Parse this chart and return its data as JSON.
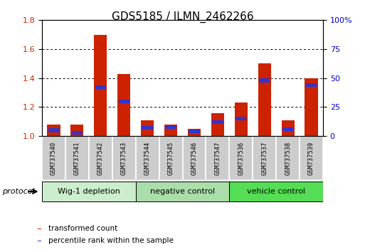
{
  "title": "GDS5185 / ILMN_2462266",
  "samples": [
    "GSM737540",
    "GSM737541",
    "GSM737542",
    "GSM737543",
    "GSM737544",
    "GSM737545",
    "GSM737546",
    "GSM737547",
    "GSM737536",
    "GSM737537",
    "GSM737538",
    "GSM737539"
  ],
  "transformed_count": [
    1.08,
    1.08,
    1.7,
    1.43,
    1.11,
    1.08,
    1.05,
    1.16,
    1.23,
    1.5,
    1.11,
    1.4
  ],
  "percentile_rank": [
    5,
    3,
    42,
    30,
    7,
    8,
    4,
    12,
    15,
    48,
    6,
    44
  ],
  "groups": [
    {
      "label": "Wig-1 depletion",
      "start": 0,
      "end": 4,
      "color": "#cceecc"
    },
    {
      "label": "negative control",
      "start": 4,
      "end": 8,
      "color": "#aaddaa"
    },
    {
      "label": "vehicle control",
      "start": 8,
      "end": 12,
      "color": "#55dd55"
    }
  ],
  "bar_color_red": "#cc2200",
  "bar_color_blue": "#3333cc",
  "ylim_left": [
    1.0,
    1.8
  ],
  "ylim_right": [
    0,
    100
  ],
  "yticks_left": [
    1.0,
    1.2,
    1.4,
    1.6,
    1.8
  ],
  "yticks_right": [
    0,
    25,
    50,
    75,
    100
  ],
  "yticklabels_right": [
    "0",
    "25",
    "50",
    "75",
    "100%"
  ],
  "left_tick_color": "#cc2200",
  "right_tick_color": "#0000cc",
  "grid_yticks": [
    1.2,
    1.4,
    1.6
  ],
  "bar_width": 0.55,
  "blue_bar_height": 0.025,
  "protocol_label": "protocol",
  "legend_items": [
    {
      "label": "transformed count",
      "color": "#cc2200"
    },
    {
      "label": "percentile rank within the sample",
      "color": "#3333cc"
    }
  ],
  "sample_box_color": "#cccccc",
  "fig_width": 5.13,
  "fig_height": 3.54,
  "title_fontsize": 11
}
